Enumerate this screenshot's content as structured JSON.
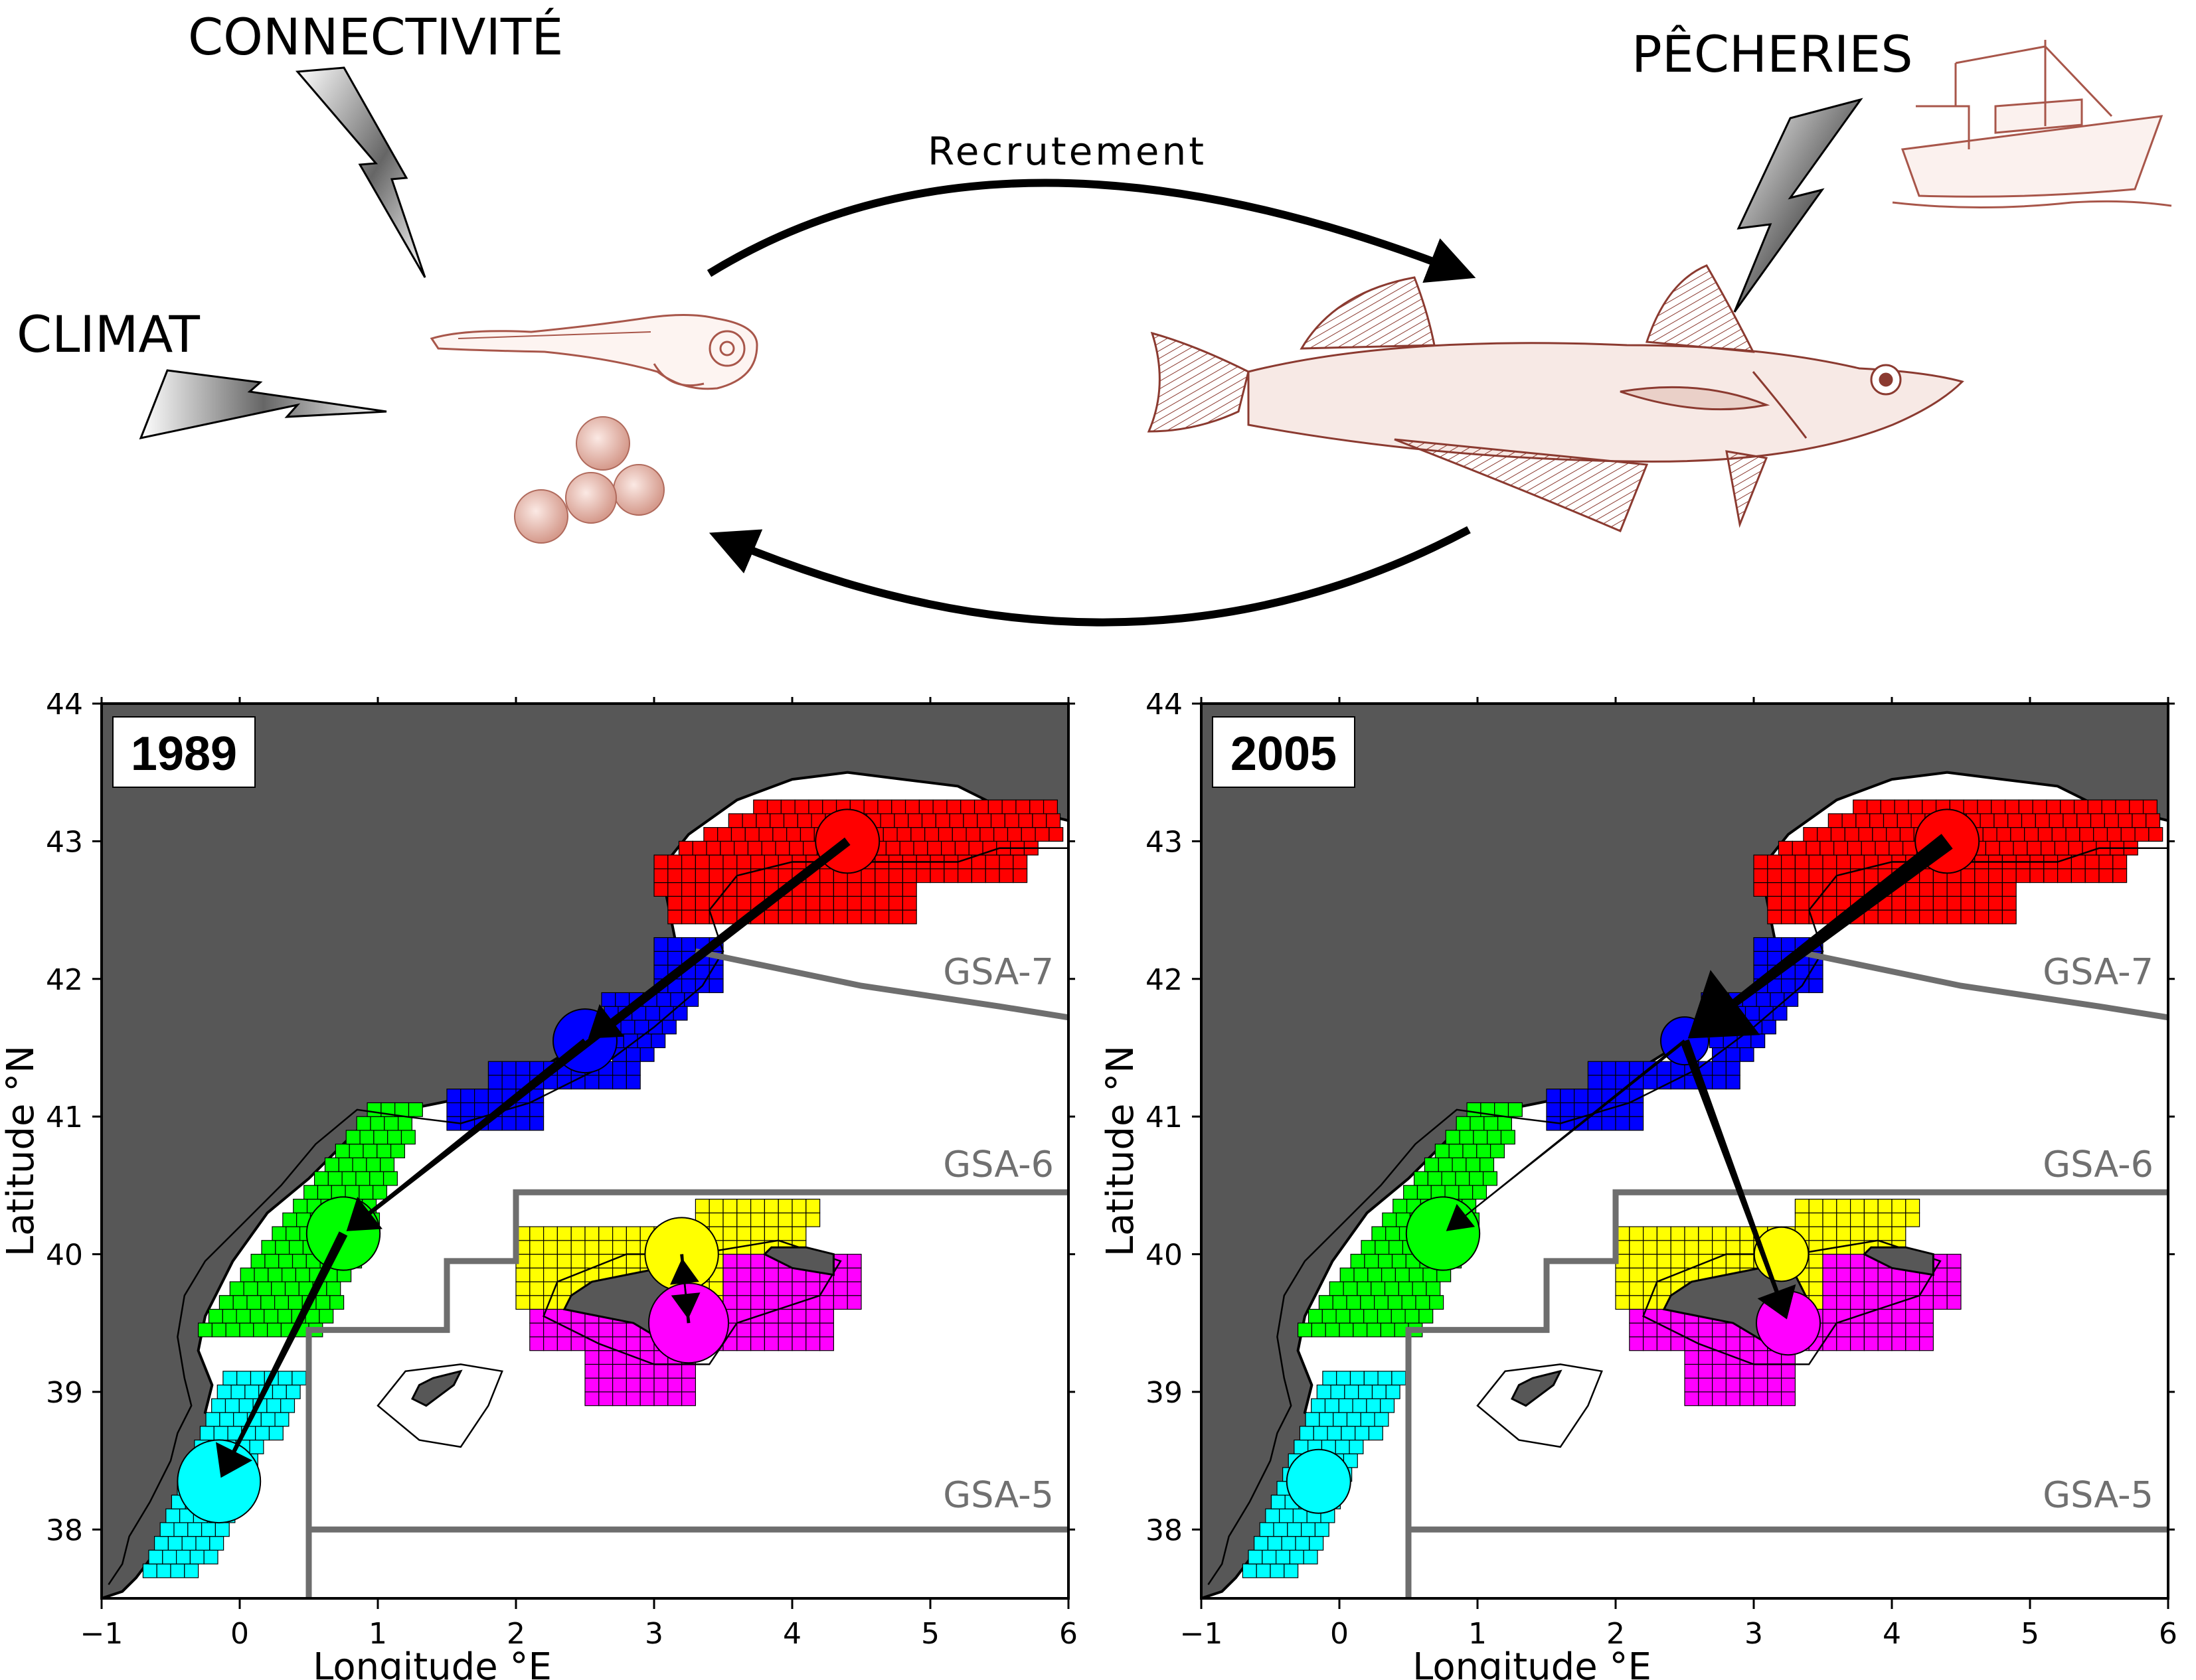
{
  "diagram": {
    "labels": {
      "connectivity": "CONNECTIVITÉ",
      "climate": "CLIMAT",
      "fisheries": "PÊCHERIES",
      "recruitment": "Recrutement"
    },
    "colors": {
      "larva_line": "#a8564a",
      "fish_line": "#8b3a30",
      "bolt_dark": "#666666",
      "bolt_light": "#ffffff"
    }
  },
  "maps": [
    {
      "year": "1989",
      "arrows": [
        {
          "from": "red",
          "to": "blue",
          "weight": "heavy"
        },
        {
          "from": "red",
          "to": "green",
          "weight": "heavy"
        },
        {
          "from": "blue",
          "to": "green",
          "weight": "medium"
        },
        {
          "from": "green",
          "to": "cyan",
          "weight": "heavy"
        },
        {
          "from": "yellow",
          "to": "magenta",
          "weight": "thin"
        },
        {
          "from": "magenta",
          "to": "yellow",
          "weight": "thin"
        }
      ],
      "node_size": {
        "red": 1.0,
        "blue": 1.0,
        "green": 1.15,
        "cyan": 1.3,
        "yellow": 1.15,
        "magenta": 1.25
      }
    },
    {
      "year": "2005",
      "arrows": [
        {
          "from": "red",
          "to": "blue",
          "weight": "very-heavy"
        },
        {
          "from": "blue",
          "to": "green",
          "weight": "thin"
        },
        {
          "from": "blue",
          "to": "magenta",
          "weight": "heavy"
        }
      ],
      "node_size": {
        "red": 1.0,
        "blue": 0.75,
        "green": 1.15,
        "cyan": 1.0,
        "yellow": 0.85,
        "magenta": 1.0
      }
    }
  ],
  "axes": {
    "xlabel": "Longitude °E",
    "ylabel": "Latitude °N",
    "xlim": [
      -1,
      6
    ],
    "ylim": [
      37.5,
      44
    ],
    "xticks": [
      "−1",
      "0",
      "1",
      "2",
      "3",
      "4",
      "5",
      "6"
    ],
    "yticks": [
      "38",
      "39",
      "40",
      "41",
      "42",
      "43",
      "44"
    ]
  },
  "regions": [
    "GSA-7",
    "GSA-6",
    "GSA-5"
  ],
  "colors": {
    "land": "#575757",
    "border": "#6e6e6e",
    "red": "#ff0000",
    "blue": "#0000ff",
    "green": "#00ff00",
    "cyan": "#00ffff",
    "yellow": "#ffff00",
    "magenta": "#ff00ff"
  }
}
